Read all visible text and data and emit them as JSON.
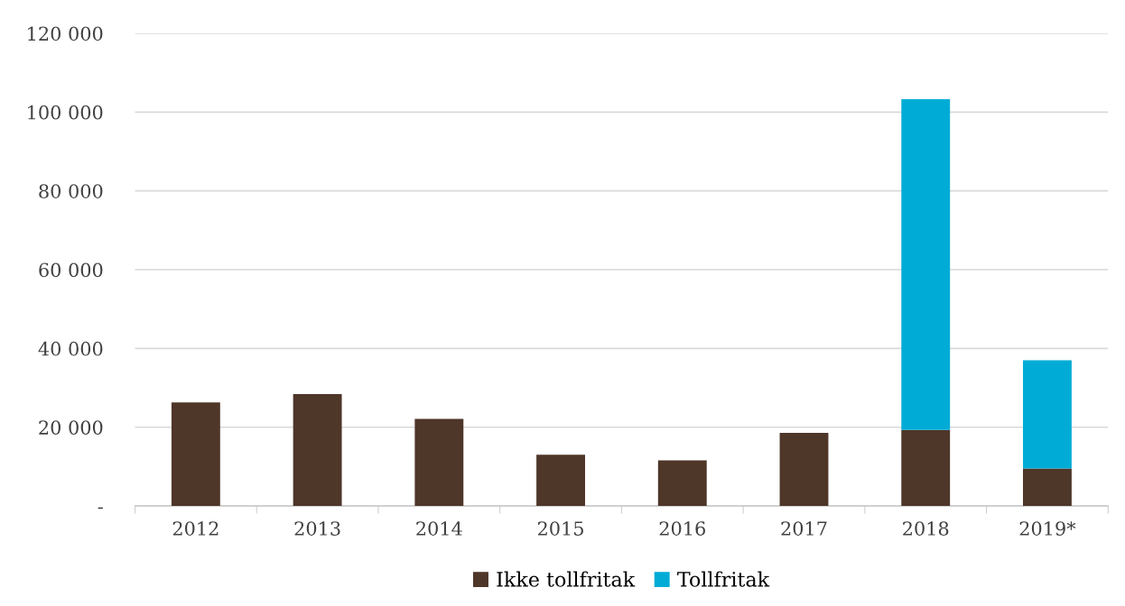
{
  "chart_data": {
    "type": "bar",
    "stacked": true,
    "categories": [
      "2012",
      "2013",
      "2014",
      "2015",
      "2016",
      "2017",
      "2018",
      "2019*"
    ],
    "series": [
      {
        "name": "Ikke tollfritak",
        "color": "#4e3629",
        "values": [
          26300,
          28400,
          22100,
          13000,
          11600,
          18600,
          19300,
          9500
        ]
      },
      {
        "name": "Tollfritak",
        "color": "#00acd6",
        "values": [
          null,
          null,
          null,
          null,
          null,
          null,
          84000,
          27500
        ]
      }
    ],
    "ylim": [
      0,
      120000
    ],
    "yticks": [
      {
        "value": 0,
        "label": "-"
      },
      {
        "value": 20000,
        "label": "20 000"
      },
      {
        "value": 40000,
        "label": "40 000"
      },
      {
        "value": 60000,
        "label": "60 000"
      },
      {
        "value": 80000,
        "label": "80 000"
      },
      {
        "value": 100000,
        "label": "100 000"
      },
      {
        "value": 120000,
        "label": "120 000"
      }
    ],
    "grid": "y",
    "legend": "bottom"
  }
}
